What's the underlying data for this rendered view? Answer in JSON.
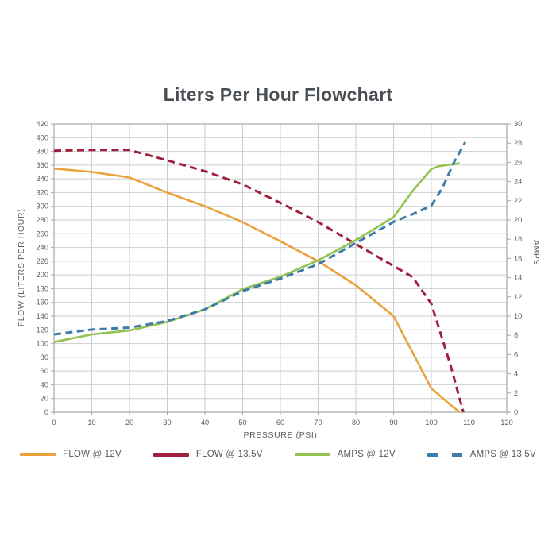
{
  "title": "Liters Per Hour Flowchart",
  "chart_data": {
    "type": "line",
    "title": "Liters Per Hour Flowchart",
    "xlabel": "PRESSURE (PSI)",
    "ylabel_left": "FLOW (LITERS PER HOUR)",
    "ylabel_right": "AMPS",
    "grid": true,
    "legend_position": "bottom",
    "x_axis": {
      "min": 0,
      "max": 120,
      "ticks": [
        0,
        10,
        20,
        30,
        40,
        50,
        60,
        70,
        80,
        90,
        100,
        110,
        120
      ]
    },
    "y_axis_left": {
      "min": 0,
      "max": 420,
      "ticks": [
        0,
        20,
        40,
        60,
        80,
        100,
        120,
        140,
        160,
        180,
        200,
        220,
        240,
        260,
        280,
        300,
        320,
        340,
        360,
        380,
        400,
        420
      ]
    },
    "y_axis_right": {
      "min": 0,
      "max": 30,
      "ticks": [
        0,
        2,
        4,
        6,
        8,
        10,
        12,
        14,
        16,
        18,
        20,
        22,
        24,
        26,
        28,
        30
      ]
    },
    "colors": {
      "grid": "#cbced1",
      "border": "#a3a8ac",
      "tick_text": "#595d61",
      "title_text": "#494e54"
    },
    "series": [
      {
        "name": "FLOW @ 12V",
        "axis": "left",
        "color": "#e9a23c",
        "dashed": false,
        "legend_dashed": false,
        "width": 2.6,
        "points": [
          [
            0,
            355
          ],
          [
            10,
            350
          ],
          [
            20,
            342
          ],
          [
            30,
            320
          ],
          [
            40,
            300
          ],
          [
            50,
            277
          ],
          [
            60,
            249
          ],
          [
            70,
            220
          ],
          [
            80,
            185
          ],
          [
            90,
            140
          ],
          [
            100,
            35
          ],
          [
            105,
            11
          ],
          [
            107.5,
            0
          ]
        ]
      },
      {
        "name": "FLOW @ 13.5V",
        "axis": "left",
        "color": "#a01f3c",
        "dashed": true,
        "legend_dashed": false,
        "width": 3,
        "points": [
          [
            0,
            381
          ],
          [
            10,
            382
          ],
          [
            20,
            382
          ],
          [
            30,
            367
          ],
          [
            40,
            351
          ],
          [
            50,
            332
          ],
          [
            60,
            305
          ],
          [
            70,
            277
          ],
          [
            80,
            245
          ],
          [
            90,
            213
          ],
          [
            95,
            197
          ],
          [
            100,
            158
          ],
          [
            105,
            70
          ],
          [
            108.5,
            0
          ]
        ]
      },
      {
        "name": "AMPS @ 12V",
        "axis": "right",
        "color": "#92c24f",
        "dashed": false,
        "legend_dashed": false,
        "width": 2.6,
        "points": [
          [
            0,
            7.3
          ],
          [
            10,
            8.1
          ],
          [
            20,
            8.5
          ],
          [
            30,
            9.4
          ],
          [
            40,
            10.7
          ],
          [
            50,
            12.8
          ],
          [
            60,
            14.1
          ],
          [
            70,
            15.8
          ],
          [
            80,
            17.9
          ],
          [
            85,
            19.1
          ],
          [
            90,
            20.3
          ],
          [
            95,
            23.0
          ],
          [
            100,
            25.3
          ],
          [
            102,
            25.6
          ],
          [
            107.5,
            25.9
          ]
        ]
      },
      {
        "name": "AMPS @ 13.5V",
        "axis": "right",
        "color": "#3e7ca8",
        "dashed": true,
        "legend_dashed": true,
        "width": 3,
        "points": [
          [
            0,
            8.1
          ],
          [
            10,
            8.6
          ],
          [
            20,
            8.8
          ],
          [
            30,
            9.5
          ],
          [
            40,
            10.7
          ],
          [
            50,
            12.6
          ],
          [
            60,
            13.9
          ],
          [
            70,
            15.4
          ],
          [
            80,
            17.6
          ],
          [
            90,
            19.8
          ],
          [
            95,
            20.6
          ],
          [
            100,
            21.5
          ],
          [
            103,
            23.4
          ],
          [
            106,
            26.0
          ],
          [
            109,
            28.1
          ]
        ]
      }
    ]
  }
}
